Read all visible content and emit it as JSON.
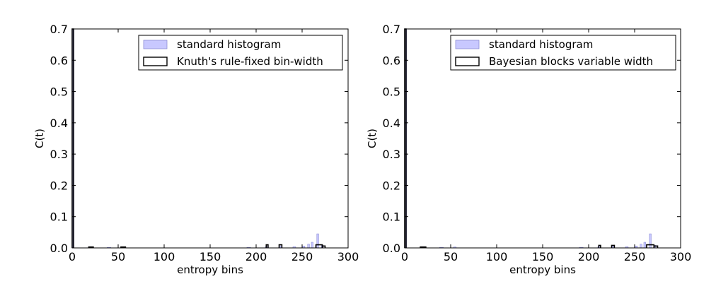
{
  "colors": {
    "standard_fill": "#c8c8ff",
    "standard_edge": "#8f8fd6",
    "step_line": "#000000"
  },
  "chart_data": [
    {
      "type": "bar",
      "xlabel": "entropy bins",
      "ylabel": "C(t)",
      "xlim": [
        0,
        300
      ],
      "ylim": [
        0,
        0.7
      ],
      "xticks": [
        "0",
        "50",
        "100",
        "150",
        "200",
        "250",
        "300"
      ],
      "yticks": [
        "0.0",
        "0.1",
        "0.2",
        "0.3",
        "0.4",
        "0.5",
        "0.6",
        "0.7"
      ],
      "legend": {
        "position": "upper right",
        "entries": [
          "standard histogram",
          "Knuth's rule-fixed bin-width"
        ]
      },
      "series": [
        {
          "name": "standard histogram",
          "style": "filled",
          "bins": [
            {
              "x0": 0,
              "x1": 2,
              "y": 0.7
            },
            {
              "x0": 18,
              "x1": 22,
              "y": 0.004
            },
            {
              "x0": 38,
              "x1": 42,
              "y": 0.002
            },
            {
              "x0": 53,
              "x1": 56,
              "y": 0.003
            },
            {
              "x0": 190,
              "x1": 194,
              "y": 0.002
            },
            {
              "x0": 210,
              "x1": 213,
              "y": 0.004
            },
            {
              "x0": 225,
              "x1": 228,
              "y": 0.006
            },
            {
              "x0": 240,
              "x1": 243,
              "y": 0.004
            },
            {
              "x0": 250,
              "x1": 253,
              "y": 0.006
            },
            {
              "x0": 256,
              "x1": 258,
              "y": 0.012
            },
            {
              "x0": 260,
              "x1": 262,
              "y": 0.018
            },
            {
              "x0": 266,
              "x1": 268,
              "y": 0.045
            },
            {
              "x0": 271,
              "x1": 273,
              "y": 0.008
            }
          ]
        },
        {
          "name": "Knuth's rule-fixed bin-width",
          "style": "step",
          "bins": [
            {
              "x0": 0,
              "x1": 1.5,
              "y": 0.7
            },
            {
              "x0": 18,
              "x1": 23,
              "y": 0.003
            },
            {
              "x0": 53,
              "x1": 58,
              "y": 0.003
            },
            {
              "x0": 211,
              "x1": 213,
              "y": 0.01
            },
            {
              "x0": 225,
              "x1": 228,
              "y": 0.01
            },
            {
              "x0": 265,
              "x1": 272,
              "y": 0.01
            },
            {
              "x0": 272,
              "x1": 275,
              "y": 0.006
            }
          ]
        }
      ]
    },
    {
      "type": "bar",
      "xlabel": "entropy bins",
      "ylabel": "C(t)",
      "xlim": [
        0,
        300
      ],
      "ylim": [
        0,
        0.7
      ],
      "xticks": [
        "0",
        "50",
        "100",
        "150",
        "200",
        "250",
        "300"
      ],
      "yticks": [
        "0.0",
        "0.1",
        "0.2",
        "0.3",
        "0.4",
        "0.5",
        "0.6",
        "0.7"
      ],
      "legend": {
        "position": "upper right",
        "entries": [
          "standard histogram",
          "Bayesian blocks variable width"
        ]
      },
      "series": [
        {
          "name": "standard histogram",
          "style": "filled",
          "bins": [
            {
              "x0": 0,
              "x1": 2,
              "y": 0.7
            },
            {
              "x0": 18,
              "x1": 22,
              "y": 0.004
            },
            {
              "x0": 38,
              "x1": 42,
              "y": 0.002
            },
            {
              "x0": 53,
              "x1": 56,
              "y": 0.003
            },
            {
              "x0": 190,
              "x1": 194,
              "y": 0.002
            },
            {
              "x0": 210,
              "x1": 213,
              "y": 0.004
            },
            {
              "x0": 225,
              "x1": 228,
              "y": 0.006
            },
            {
              "x0": 240,
              "x1": 243,
              "y": 0.004
            },
            {
              "x0": 250,
              "x1": 253,
              "y": 0.006
            },
            {
              "x0": 256,
              "x1": 258,
              "y": 0.012
            },
            {
              "x0": 260,
              "x1": 262,
              "y": 0.018
            },
            {
              "x0": 266,
              "x1": 268,
              "y": 0.045
            },
            {
              "x0": 271,
              "x1": 273,
              "y": 0.008
            }
          ]
        },
        {
          "name": "Bayesian blocks variable width",
          "style": "step",
          "bins": [
            {
              "x0": 0,
              "x1": 1.5,
              "y": 0.7
            },
            {
              "x0": 17,
              "x1": 23,
              "y": 0.003
            },
            {
              "x0": 211,
              "x1": 213,
              "y": 0.008
            },
            {
              "x0": 225,
              "x1": 228,
              "y": 0.008
            },
            {
              "x0": 263,
              "x1": 271,
              "y": 0.01
            },
            {
              "x0": 271,
              "x1": 275,
              "y": 0.006
            }
          ]
        }
      ]
    }
  ]
}
